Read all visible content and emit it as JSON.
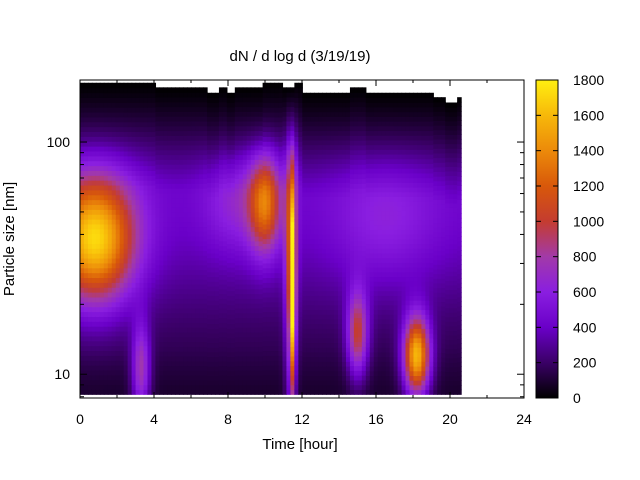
{
  "chart_data": {
    "type": "heatmap",
    "title": "dN / d log d (3/19/19)",
    "xlabel": "Time [hour]",
    "ylabel": "Particle size [nm]",
    "x_scale": "linear",
    "y_scale": "log",
    "xlim": [
      0,
      24
    ],
    "ylim": [
      7.9,
      185
    ],
    "x_ticks": [
      0,
      4,
      8,
      12,
      16,
      20,
      24
    ],
    "y_ticks": [
      10,
      100
    ],
    "y_tick_labels": [
      "10",
      "100"
    ],
    "colorbar": {
      "range": [
        0,
        1800
      ],
      "ticks": [
        0,
        200,
        400,
        600,
        800,
        1000,
        1200,
        1400,
        1600,
        1800
      ],
      "palette": [
        "#000000",
        "#3a0066",
        "#6a00c8",
        "#8a1ee0",
        "#a23aa8",
        "#c43c30",
        "#d8580a",
        "#ec8a0a",
        "#f7b80a",
        "#ffef10"
      ]
    },
    "data_extent_hours": [
      0,
      20.6
    ],
    "lower_size_limit_nm": 8.2,
    "upper_edge": [
      {
        "x": 0,
        "size": 180
      },
      {
        "x": 4.0,
        "size": 172
      },
      {
        "x": 6.8,
        "size": 163
      },
      {
        "x": 7.5,
        "size": 172
      },
      {
        "x": 7.9,
        "size": 163
      },
      {
        "x": 8.3,
        "size": 172
      },
      {
        "x": 9.8,
        "size": 180
      },
      {
        "x": 11.0,
        "size": 172
      },
      {
        "x": 11.6,
        "size": 180
      },
      {
        "x": 12.0,
        "size": 163
      },
      {
        "x": 14.6,
        "size": 172
      },
      {
        "x": 15.4,
        "size": 163
      },
      {
        "x": 19.0,
        "size": 156
      },
      {
        "x": 19.8,
        "size": 148
      },
      {
        "x": 20.3,
        "size": 156
      },
      {
        "x": 20.6,
        "size": 156
      }
    ],
    "background_level": 360,
    "features": [
      {
        "x": 0.8,
        "size": 38,
        "sx": 1.5,
        "sl": 0.19,
        "peak": 1350
      },
      {
        "x": 3.3,
        "size": 10.5,
        "sx": 0.35,
        "sl": 0.14,
        "peak": 650
      },
      {
        "x": 10.0,
        "size": 55,
        "sx": 0.6,
        "sl": 0.15,
        "peak": 860
      },
      {
        "x": 11.4,
        "size": 30,
        "sx": 0.22,
        "sl": 0.42,
        "peak": 820
      },
      {
        "x": 11.5,
        "size": 22,
        "sx": 0.1,
        "sl": 0.3,
        "peak": 1100
      },
      {
        "x": 15.0,
        "size": 15,
        "sx": 0.4,
        "sl": 0.13,
        "peak": 820
      },
      {
        "x": 18.2,
        "size": 12,
        "sx": 0.5,
        "sl": 0.12,
        "peak": 1450
      },
      {
        "x": 8.5,
        "size": 55,
        "sx": 1.2,
        "sl": 0.15,
        "peak": 260
      },
      {
        "x": 16.5,
        "size": 45,
        "sx": 2.0,
        "sl": 0.2,
        "peak": 220
      }
    ]
  }
}
